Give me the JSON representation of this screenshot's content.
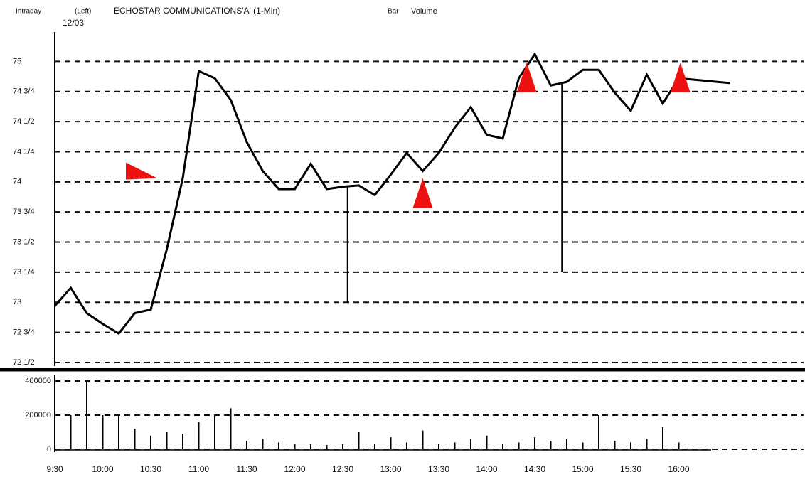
{
  "chart_data": [
    {
      "type": "line",
      "title": "ECHOSTAR COMMUNICATIONS'A' (1-Min)",
      "header_left": "Intraday",
      "header_side": "(Left)",
      "date": "12/03",
      "header_right": "Bar",
      "header_right2": "Volume",
      "x": [
        570,
        580,
        590,
        600,
        610,
        620,
        630,
        640,
        650,
        660,
        670,
        680,
        690,
        700,
        710,
        720,
        730,
        740,
        750,
        760,
        770,
        780,
        790,
        800,
        810,
        820,
        830,
        840,
        850,
        860,
        870,
        880,
        890,
        900,
        910,
        920,
        930,
        940,
        950,
        960,
        992
      ],
      "series": [
        {
          "color": "#000000",
          "values": [
            72.97,
            73.12,
            72.91,
            72.82,
            72.74,
            72.91,
            72.94,
            73.44,
            74.03,
            74.92,
            74.86,
            74.68,
            74.33,
            74.09,
            73.94,
            73.94,
            74.15,
            73.94,
            73.96,
            73.97,
            73.89,
            74.06,
            74.24,
            74.09,
            74.24,
            74.45,
            74.62,
            74.39,
            74.36,
            74.86,
            75.06,
            74.8,
            74.83,
            74.93,
            74.93,
            74.74,
            74.59,
            74.89,
            74.65,
            74.86,
            74.82
          ]
        }
      ],
      "spikes": [
        {
          "x": 753,
          "high": 73.97,
          "low": 73
        },
        {
          "x": 887,
          "high": 74.83,
          "low": 73.25
        }
      ],
      "markers": [
        {
          "x": 634,
          "y": 74.09,
          "direction": "right",
          "color": "#ee1111"
        },
        {
          "x": 800,
          "y": 73.9,
          "direction": "up",
          "color": "#ee1111"
        },
        {
          "x": 865,
          "y": 74.86,
          "direction": "up",
          "color": "#ee1111"
        },
        {
          "x": 961,
          "y": 74.86,
          "direction": "up",
          "color": "#ee1111"
        }
      ],
      "xlim": [
        570,
        1038
      ],
      "ylim": [
        72.5,
        75.25
      ],
      "yticks": [
        {
          "value": 72.5,
          "label": "72 1/2"
        },
        {
          "value": 72.75,
          "label": "72 3/4"
        },
        73,
        {
          "value": 73.25,
          "label": "73 1/4"
        },
        {
          "value": 73.5,
          "label": "73 1/2"
        },
        {
          "value": 73.75,
          "label": "73 3/4"
        },
        74,
        {
          "value": 74.25,
          "label": "74 1/4"
        },
        {
          "value": 74.5,
          "label": "74 1/2"
        },
        {
          "value": 74.75,
          "label": "74 3/4"
        },
        75
      ],
      "grid": true
    },
    {
      "type": "bar",
      "x": [
        570,
        580,
        590,
        600,
        610,
        620,
        630,
        640,
        650,
        660,
        670,
        680,
        690,
        700,
        710,
        720,
        730,
        740,
        750,
        760,
        770,
        780,
        790,
        800,
        810,
        820,
        830,
        840,
        850,
        860,
        870,
        880,
        890,
        900,
        910,
        920,
        930,
        940,
        950,
        960
      ],
      "values": [
        60000,
        200000,
        400000,
        200000,
        200000,
        120000,
        80000,
        100000,
        90000,
        160000,
        200000,
        240000,
        50000,
        60000,
        40000,
        30000,
        30000,
        25000,
        30000,
        100000,
        30000,
        70000,
        40000,
        110000,
        30000,
        40000,
        60000,
        80000,
        30000,
        40000,
        70000,
        50000,
        60000,
        40000,
        200000,
        50000,
        40000,
        60000,
        130000,
        40000
      ],
      "color": "#000000",
      "xlim": [
        570,
        1038
      ],
      "ylim": [
        0,
        400000
      ],
      "yticks": [
        0,
        200000,
        400000
      ],
      "xticks": [
        {
          "value": 570,
          "label": "9:30"
        },
        {
          "value": 600,
          "label": "10:00"
        },
        {
          "value": 630,
          "label": "10:30"
        },
        {
          "value": 660,
          "label": "11:00"
        },
        {
          "value": 690,
          "label": "11:30"
        },
        {
          "value": 720,
          "label": "12:00"
        },
        {
          "value": 750,
          "label": "12:30"
        },
        {
          "value": 780,
          "label": "13:00"
        },
        {
          "value": 810,
          "label": "13:30"
        },
        {
          "value": 840,
          "label": "14:00"
        },
        {
          "value": 870,
          "label": "14:30"
        },
        {
          "value": 900,
          "label": "15:00"
        },
        {
          "value": 930,
          "label": "15:30"
        },
        {
          "value": 960,
          "label": "16:00"
        }
      ],
      "grid": true
    }
  ]
}
